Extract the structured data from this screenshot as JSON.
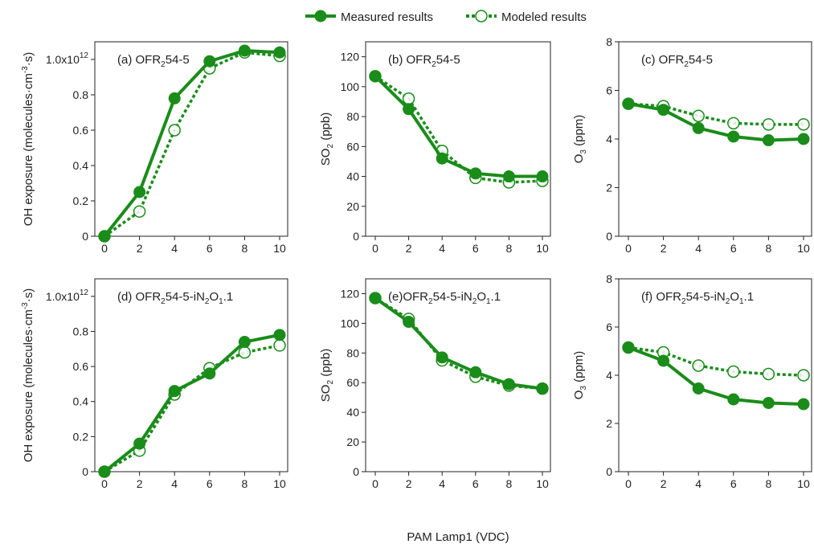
{
  "colors": {
    "series": "#1a8c1a",
    "axis": "#222222"
  },
  "legend": {
    "measured_label": "Measured results",
    "modeled_label": "Modeled results",
    "placement": "top-center"
  },
  "shared_xlabel": "PAM Lamp1 (VDC)",
  "chart_data": [
    {
      "type": "line",
      "panel_label": "(a) OFR254-5",
      "ylabel": "OH exposure (molecules·cm^-3·s)",
      "x": [
        0,
        2,
        4,
        6,
        8,
        10
      ],
      "xlim": [
        0,
        10
      ],
      "ylim": [
        0,
        1.1
      ],
      "yticks": [
        0,
        0.2,
        0.4,
        0.6,
        0.8,
        1.0
      ],
      "ytick_labels": [
        "0",
        "0.2",
        "0.4",
        "0.6",
        "0.8",
        "1.0x10^12"
      ],
      "series": [
        {
          "name": "Measured results",
          "values": [
            0,
            0.25,
            0.78,
            0.99,
            1.05,
            1.04
          ]
        },
        {
          "name": "Modeled results",
          "values": [
            0,
            0.14,
            0.6,
            0.95,
            1.04,
            1.02
          ]
        }
      ]
    },
    {
      "type": "line",
      "panel_label": "(b) OFR254-5",
      "ylabel": "SO2 (ppb)",
      "x": [
        0,
        2,
        4,
        6,
        8,
        10
      ],
      "xlim": [
        0,
        10
      ],
      "ylim": [
        0,
        130
      ],
      "yticks": [
        0,
        20,
        40,
        60,
        80,
        100,
        120
      ],
      "ytick_labels": [
        "0",
        "20",
        "40",
        "60",
        "80",
        "100",
        "120"
      ],
      "series": [
        {
          "name": "Measured results",
          "values": [
            107,
            85,
            52,
            42,
            40,
            40
          ]
        },
        {
          "name": "Modeled results",
          "values": [
            107,
            92,
            57,
            39,
            36,
            37
          ]
        }
      ]
    },
    {
      "type": "line",
      "panel_label": "(c) OFR254-5",
      "ylabel": "O3 (ppm)",
      "x": [
        0,
        2,
        4,
        6,
        8,
        10
      ],
      "xlim": [
        0,
        10
      ],
      "ylim": [
        0,
        8
      ],
      "yticks": [
        0,
        2,
        4,
        6,
        8
      ],
      "ytick_labels": [
        "0",
        "2",
        "4",
        "6",
        "8"
      ],
      "series": [
        {
          "name": "Measured results",
          "values": [
            5.45,
            5.2,
            4.45,
            4.1,
            3.95,
            4.0
          ]
        },
        {
          "name": "Modeled results",
          "values": [
            5.45,
            5.35,
            4.95,
            4.65,
            4.6,
            4.6
          ]
        }
      ]
    },
    {
      "type": "line",
      "panel_label": "(d) OFR254-5-iN2O1.1",
      "ylabel": "OH exposure (molecules·cm^-3·s)",
      "x": [
        0,
        2,
        4,
        6,
        8,
        10
      ],
      "xlim": [
        0,
        10
      ],
      "ylim": [
        0,
        1.1
      ],
      "yticks": [
        0,
        0.2,
        0.4,
        0.6,
        0.8,
        1.0
      ],
      "ytick_labels": [
        "0",
        "0.2",
        "0.4",
        "0.6",
        "0.8",
        "1.0x10^12"
      ],
      "series": [
        {
          "name": "Measured results",
          "values": [
            0,
            0.16,
            0.46,
            0.56,
            0.74,
            0.78
          ]
        },
        {
          "name": "Modeled results",
          "values": [
            0,
            0.12,
            0.44,
            0.59,
            0.68,
            0.72
          ]
        }
      ]
    },
    {
      "type": "line",
      "panel_label": "(e)OFR254-5-iN2O1.1",
      "ylabel": "SO2 (ppb)",
      "x": [
        0,
        2,
        4,
        6,
        8,
        10
      ],
      "xlim": [
        0,
        10
      ],
      "ylim": [
        0,
        130
      ],
      "yticks": [
        0,
        20,
        40,
        60,
        80,
        100,
        120
      ],
      "ytick_labels": [
        "0",
        "20",
        "40",
        "60",
        "80",
        "100",
        "120"
      ],
      "series": [
        {
          "name": "Measured results",
          "values": [
            117,
            101,
            77,
            67,
            59,
            56
          ]
        },
        {
          "name": "Modeled results",
          "values": [
            117,
            103,
            75,
            64,
            58,
            56
          ]
        }
      ]
    },
    {
      "type": "line",
      "panel_label": "(f) OFR254-5-iN2O1.1",
      "ylabel": "O3 (ppm)",
      "x": [
        0,
        2,
        4,
        6,
        8,
        10
      ],
      "xlim": [
        0,
        10
      ],
      "ylim": [
        0,
        8
      ],
      "yticks": [
        0,
        2,
        4,
        6,
        8
      ],
      "ytick_labels": [
        "0",
        "2",
        "4",
        "6",
        "8"
      ],
      "series": [
        {
          "name": "Measured results",
          "values": [
            5.15,
            4.6,
            3.45,
            3.0,
            2.85,
            2.8
          ]
        },
        {
          "name": "Modeled results",
          "values": [
            5.15,
            4.95,
            4.4,
            4.15,
            4.05,
            4.0
          ]
        }
      ]
    }
  ]
}
